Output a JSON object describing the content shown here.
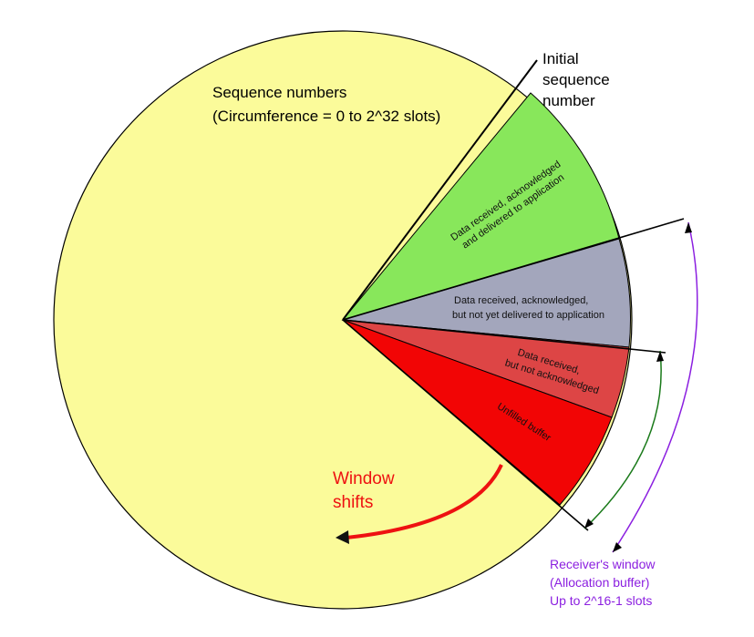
{
  "diagram": {
    "sequence_numbers": {
      "line1": "Sequence numbers",
      "line2": "(Circumference = 0 to 2^32 slots)"
    },
    "initial_sequence": {
      "line1": "Initial",
      "line2": "sequence",
      "line3": "number"
    },
    "segments": {
      "delivered": {
        "line1": "Data received, acknowledged",
        "line2": "and delivered to application",
        "color": "#88e75b"
      },
      "not_delivered": {
        "line1": "Data received, acknowledged,",
        "line2": "but not yet delivered to application",
        "color": "#a3a6bc"
      },
      "not_acked": {
        "line1": "Data received,",
        "line2": "but not acknowledged",
        "color": "#dd4545"
      },
      "unfilled": {
        "line1": "Unfilled buffer",
        "color": "#f20505"
      }
    },
    "window_shifts": {
      "line1": "Window",
      "line2": "shifts",
      "color": "#ee1111"
    },
    "receivers_window": {
      "line1": "Receiver's window",
      "line2": "(Allocation buffer)",
      "line3": "Up to 2^16-1 slots",
      "color": "#8b1fe0"
    },
    "colors": {
      "circle_fill": "#fbfb9a",
      "outline": "#000000",
      "green_arrow": "#1a7a1a"
    }
  }
}
